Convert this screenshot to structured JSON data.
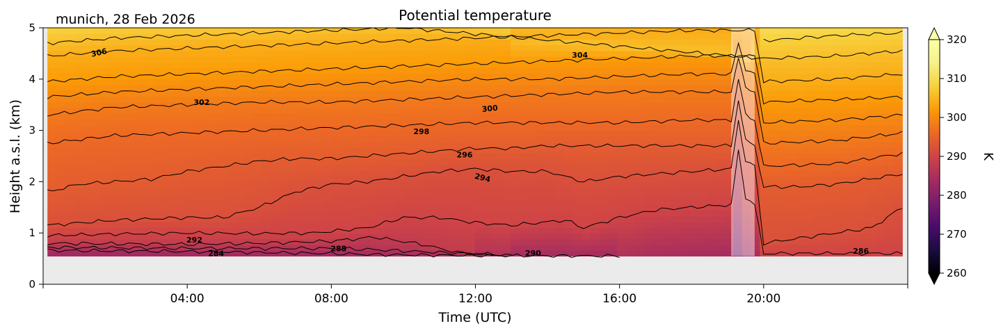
{
  "chart_data": {
    "type": "heatmap",
    "title": "Potential temperature",
    "location_label": "munich, 28 Feb 2026",
    "xlabel": "Time (UTC)",
    "ylabel": "Height a.s.l. (km)",
    "xlim_hours": [
      0,
      24
    ],
    "ylim_km": [
      0,
      5
    ],
    "x_ticks": [
      {
        "hour": 4,
        "label": "04:00"
      },
      {
        "hour": 8,
        "label": "08:00"
      },
      {
        "hour": 12,
        "label": "12:00"
      },
      {
        "hour": 16,
        "label": "16:00"
      },
      {
        "hour": 20,
        "label": "20:00"
      }
    ],
    "y_ticks": [
      {
        "value": 0,
        "label": "0"
      },
      {
        "value": 1,
        "label": "1"
      },
      {
        "value": 2,
        "label": "2"
      },
      {
        "value": 3,
        "label": "3"
      },
      {
        "value": 4,
        "label": "4"
      },
      {
        "value": 5,
        "label": "5"
      }
    ],
    "data_extent": {
      "t_start": 0.12,
      "t_end": 23.85,
      "z_bottom": 0.55,
      "z_top": 5.0
    },
    "missing_band_hours": [
      19.1,
      19.75
    ],
    "colorbar": {
      "label": "K",
      "vmin": 260,
      "vmax": 320,
      "colormap": "inferno",
      "ticks": [
        {
          "value": 260,
          "label": "260"
        },
        {
          "value": 270,
          "label": "270"
        },
        {
          "value": 280,
          "label": "280"
        },
        {
          "value": 290,
          "label": "290"
        },
        {
          "value": 300,
          "label": "300"
        },
        {
          "value": 310,
          "label": "310"
        },
        {
          "value": 320,
          "label": "320"
        }
      ]
    },
    "contours": [
      {
        "level": 284,
        "points": [
          [
            0.12,
            0.66
          ],
          [
            4,
            0.64
          ],
          [
            8,
            0.6
          ],
          [
            9,
            0.58
          ],
          [
            12,
            0.56
          ],
          [
            16,
            0.55
          ]
        ]
      },
      {
        "level": 286,
        "points": [
          [
            0.12,
            0.72
          ],
          [
            4,
            0.7
          ],
          [
            8,
            0.7
          ],
          [
            9,
            0.68
          ],
          [
            11,
            0.62
          ],
          [
            13,
            0.57
          ]
        ]
      },
      {
        "level": 288,
        "points": [
          [
            0.12,
            0.8
          ],
          [
            4,
            0.78
          ],
          [
            6,
            0.8
          ],
          [
            8,
            0.84
          ],
          [
            9.2,
            0.92
          ],
          [
            10.5,
            0.78
          ],
          [
            11.5,
            0.62
          ],
          [
            12.5,
            0.57
          ]
        ]
      },
      {
        "level": 290,
        "points": [
          [
            0.12,
            0.95
          ],
          [
            2,
            0.98
          ],
          [
            4,
            1.0
          ],
          [
            6,
            0.99
          ],
          [
            7.5,
            1.0
          ],
          [
            9,
            1.1
          ],
          [
            10,
            1.3
          ],
          [
            11,
            1.3
          ],
          [
            12,
            1.2
          ],
          [
            13,
            1.15
          ],
          [
            14.5,
            1.25
          ],
          [
            15,
            1.1
          ],
          [
            16,
            1.3
          ],
          [
            17,
            1.45
          ],
          [
            18,
            1.5
          ],
          [
            19.1,
            1.55
          ],
          [
            19.3,
            2.6
          ],
          [
            19.5,
            1.7
          ],
          [
            19.75,
            1.55
          ],
          [
            20,
            0.6
          ],
          [
            23.85,
            0.6
          ]
        ]
      },
      {
        "level": 292,
        "points": [
          [
            0.12,
            1.15
          ],
          [
            2,
            1.25
          ],
          [
            4,
            1.3
          ],
          [
            5,
            1.3
          ],
          [
            6,
            1.5
          ],
          [
            7,
            1.8
          ],
          [
            8,
            1.95
          ],
          [
            9,
            2.0
          ],
          [
            10,
            2.1
          ],
          [
            11,
            2.2
          ],
          [
            12,
            2.25
          ],
          [
            13,
            2.2
          ],
          [
            14,
            2.2
          ],
          [
            15,
            2.0
          ],
          [
            16,
            2.1
          ],
          [
            18,
            2.2
          ],
          [
            19.1,
            2.25
          ],
          [
            19.3,
            3.2
          ],
          [
            19.5,
            2.4
          ],
          [
            19.75,
            2.3
          ],
          [
            20,
            0.8
          ],
          [
            21,
            0.9
          ],
          [
            22,
            1.0
          ],
          [
            23,
            1.1
          ],
          [
            23.85,
            1.5
          ]
        ]
      },
      {
        "level": 294,
        "points": [
          [
            0.12,
            1.8
          ],
          [
            1,
            1.95
          ],
          [
            2,
            2.0
          ],
          [
            3,
            2.05
          ],
          [
            4,
            2.2
          ],
          [
            5,
            2.3
          ],
          [
            6,
            2.4
          ],
          [
            7,
            2.45
          ],
          [
            8,
            2.45
          ],
          [
            9,
            2.5
          ],
          [
            10,
            2.55
          ],
          [
            11,
            2.6
          ],
          [
            12,
            2.65
          ],
          [
            13,
            2.65
          ],
          [
            14,
            2.7
          ],
          [
            16,
            2.7
          ],
          [
            18,
            2.7
          ],
          [
            19.1,
            2.7
          ],
          [
            19.3,
            3.6
          ],
          [
            19.5,
            2.8
          ],
          [
            19.75,
            2.7
          ],
          [
            20,
            1.9
          ],
          [
            21,
            1.9
          ],
          [
            22,
            1.95
          ],
          [
            23.85,
            2.15
          ]
        ]
      },
      {
        "level": 296,
        "points": [
          [
            0.12,
            2.75
          ],
          [
            2,
            2.9
          ],
          [
            4,
            2.95
          ],
          [
            6,
            3.0
          ],
          [
            8,
            3.05
          ],
          [
            10,
            3.1
          ],
          [
            12,
            3.15
          ],
          [
            14,
            3.15
          ],
          [
            16,
            3.15
          ],
          [
            18,
            3.2
          ],
          [
            19.1,
            3.2
          ],
          [
            19.3,
            4.0
          ],
          [
            19.5,
            3.3
          ],
          [
            19.75,
            3.2
          ],
          [
            20,
            2.3
          ],
          [
            22,
            2.35
          ],
          [
            23.85,
            2.55
          ]
        ]
      },
      {
        "level": 298,
        "points": [
          [
            0.12,
            3.3
          ],
          [
            2,
            3.45
          ],
          [
            4,
            3.5
          ],
          [
            6,
            3.55
          ],
          [
            8,
            3.55
          ],
          [
            10,
            3.6
          ],
          [
            12,
            3.65
          ],
          [
            14,
            3.7
          ],
          [
            16,
            3.75
          ],
          [
            18,
            3.75
          ],
          [
            19.1,
            3.75
          ],
          [
            19.3,
            4.4
          ],
          [
            19.5,
            3.85
          ],
          [
            19.75,
            3.75
          ],
          [
            20,
            2.75
          ],
          [
            22,
            2.8
          ],
          [
            23.85,
            2.95
          ]
        ]
      },
      {
        "level": 300,
        "points": [
          [
            0.12,
            3.65
          ],
          [
            2,
            3.75
          ],
          [
            4,
            3.8
          ],
          [
            6,
            3.85
          ],
          [
            8,
            3.9
          ],
          [
            10,
            3.95
          ],
          [
            12,
            4.0
          ],
          [
            14,
            4.0
          ],
          [
            16,
            4.05
          ],
          [
            18,
            4.1
          ],
          [
            19.1,
            4.1
          ],
          [
            19.3,
            4.7
          ],
          [
            19.5,
            4.2
          ],
          [
            19.75,
            4.1
          ],
          [
            20,
            3.15
          ],
          [
            22,
            3.2
          ],
          [
            23.85,
            3.3
          ]
        ]
      },
      {
        "level": 302,
        "points": [
          [
            0.12,
            3.95
          ],
          [
            2,
            4.05
          ],
          [
            4,
            4.1
          ],
          [
            6,
            4.15
          ],
          [
            8,
            4.2
          ],
          [
            10,
            4.25
          ],
          [
            12,
            4.3
          ],
          [
            14,
            4.35
          ],
          [
            16,
            4.4
          ],
          [
            18,
            4.45
          ],
          [
            19.1,
            4.45
          ],
          [
            19.75,
            4.45
          ],
          [
            20,
            3.55
          ],
          [
            22,
            3.6
          ],
          [
            23.85,
            3.65
          ]
        ]
      },
      {
        "level": 304,
        "points": [
          [
            0.12,
            4.45
          ],
          [
            2,
            4.55
          ],
          [
            4,
            4.6
          ],
          [
            6,
            4.65
          ],
          [
            8,
            4.7
          ],
          [
            10,
            4.75
          ],
          [
            12,
            4.8
          ],
          [
            14,
            4.85
          ],
          [
            16,
            4.9
          ],
          [
            18,
            4.95
          ],
          [
            19.1,
            4.95
          ],
          [
            19.75,
            4.95
          ],
          [
            20,
            3.95
          ],
          [
            22,
            4.0
          ],
          [
            23.85,
            4.1
          ]
        ]
      },
      {
        "level": 306,
        "points": [
          [
            0.12,
            4.7
          ],
          [
            2,
            4.8
          ],
          [
            4,
            4.85
          ],
          [
            6,
            4.9
          ],
          [
            8,
            4.95
          ],
          [
            10,
            5.0
          ],
          [
            20,
            4.4
          ],
          [
            22,
            4.45
          ],
          [
            23.85,
            4.55
          ]
        ]
      },
      {
        "level": 308,
        "points": [
          [
            20,
            4.75
          ],
          [
            22,
            4.85
          ],
          [
            23.85,
            4.9
          ]
        ]
      }
    ],
    "contour_labels": [
      {
        "text": "306",
        "hour": 1.55,
        "km": 4.52,
        "angle": -12
      },
      {
        "text": "304",
        "hour": 14.9,
        "km": 4.47,
        "angle": 0
      },
      {
        "text": "302",
        "hour": 4.4,
        "km": 3.55,
        "angle": 0
      },
      {
        "text": "300",
        "hour": 12.4,
        "km": 3.43,
        "angle": -6
      },
      {
        "text": "298",
        "hour": 10.5,
        "km": 2.98,
        "angle": 0
      },
      {
        "text": "296",
        "hour": 11.7,
        "km": 2.53,
        "angle": 0
      },
      {
        "text": "294",
        "hour": 12.2,
        "km": 2.08,
        "angle": 14
      },
      {
        "text": "292",
        "hour": 4.2,
        "km": 0.87,
        "angle": 0
      },
      {
        "text": "288",
        "hour": 8.2,
        "km": 0.7,
        "angle": 0
      },
      {
        "text": "290",
        "hour": 13.6,
        "km": 0.61,
        "angle": 0
      },
      {
        "text": "284",
        "hour": 4.8,
        "km": 0.6,
        "angle": 0
      },
      {
        "text": "286",
        "hour": 22.7,
        "km": 0.65,
        "angle": 0
      }
    ]
  }
}
